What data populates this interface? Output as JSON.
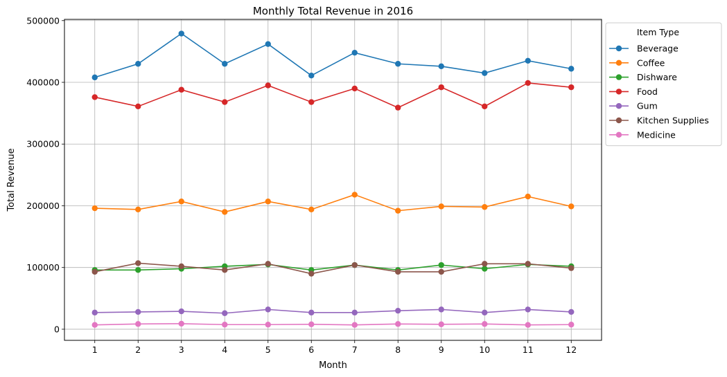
{
  "chart_data": {
    "type": "line",
    "title": "Monthly Total Revenue in 2016",
    "xlabel": "Month",
    "ylabel": "Total Revenue",
    "x": [
      1,
      2,
      3,
      4,
      5,
      6,
      7,
      8,
      9,
      10,
      11,
      12
    ],
    "xticks": [
      "1",
      "2",
      "3",
      "4",
      "5",
      "6",
      "7",
      "8",
      "9",
      "10",
      "11",
      "12"
    ],
    "yticks": [
      "0",
      "100000",
      "200000",
      "300000",
      "400000",
      "500000"
    ],
    "ylim": [
      -18000,
      502000
    ],
    "xlim": [
      0.3,
      12.7
    ],
    "grid": true,
    "legend": {
      "title": "Item Type",
      "placement": "outside-top-right"
    },
    "series": [
      {
        "name": "Beverage",
        "color": "#1f77b4",
        "values": [
          408000,
          430000,
          479000,
          430000,
          462000,
          411000,
          448000,
          430000,
          426000,
          415000,
          435000,
          422000
        ]
      },
      {
        "name": "Coffee",
        "color": "#ff7f0e",
        "values": [
          196000,
          194000,
          207000,
          190000,
          207000,
          194000,
          218000,
          192000,
          199000,
          198000,
          215000,
          199000
        ]
      },
      {
        "name": "Dishware",
        "color": "#2ca02c",
        "values": [
          96000,
          96000,
          98000,
          102000,
          105000,
          96000,
          104000,
          96000,
          104000,
          98000,
          105000,
          102000
        ]
      },
      {
        "name": "Food",
        "color": "#d62728",
        "values": [
          376000,
          361000,
          388000,
          368000,
          395000,
          368000,
          390000,
          359000,
          392000,
          361000,
          399000,
          392000
        ]
      },
      {
        "name": "Gum",
        "color": "#9467bd",
        "values": [
          27000,
          28000,
          29000,
          26000,
          32000,
          27000,
          27000,
          30000,
          32000,
          27000,
          32000,
          28000
        ]
      },
      {
        "name": "Kitchen Supplies",
        "color": "#8c564b",
        "values": [
          93000,
          107000,
          102000,
          96000,
          106000,
          90000,
          104000,
          93000,
          93000,
          106000,
          106000,
          99000
        ]
      },
      {
        "name": "Medicine",
        "color": "#e377c2",
        "values": [
          7000,
          8500,
          9000,
          7500,
          7500,
          8000,
          7000,
          8500,
          8000,
          8500,
          7000,
          7500
        ]
      }
    ]
  }
}
